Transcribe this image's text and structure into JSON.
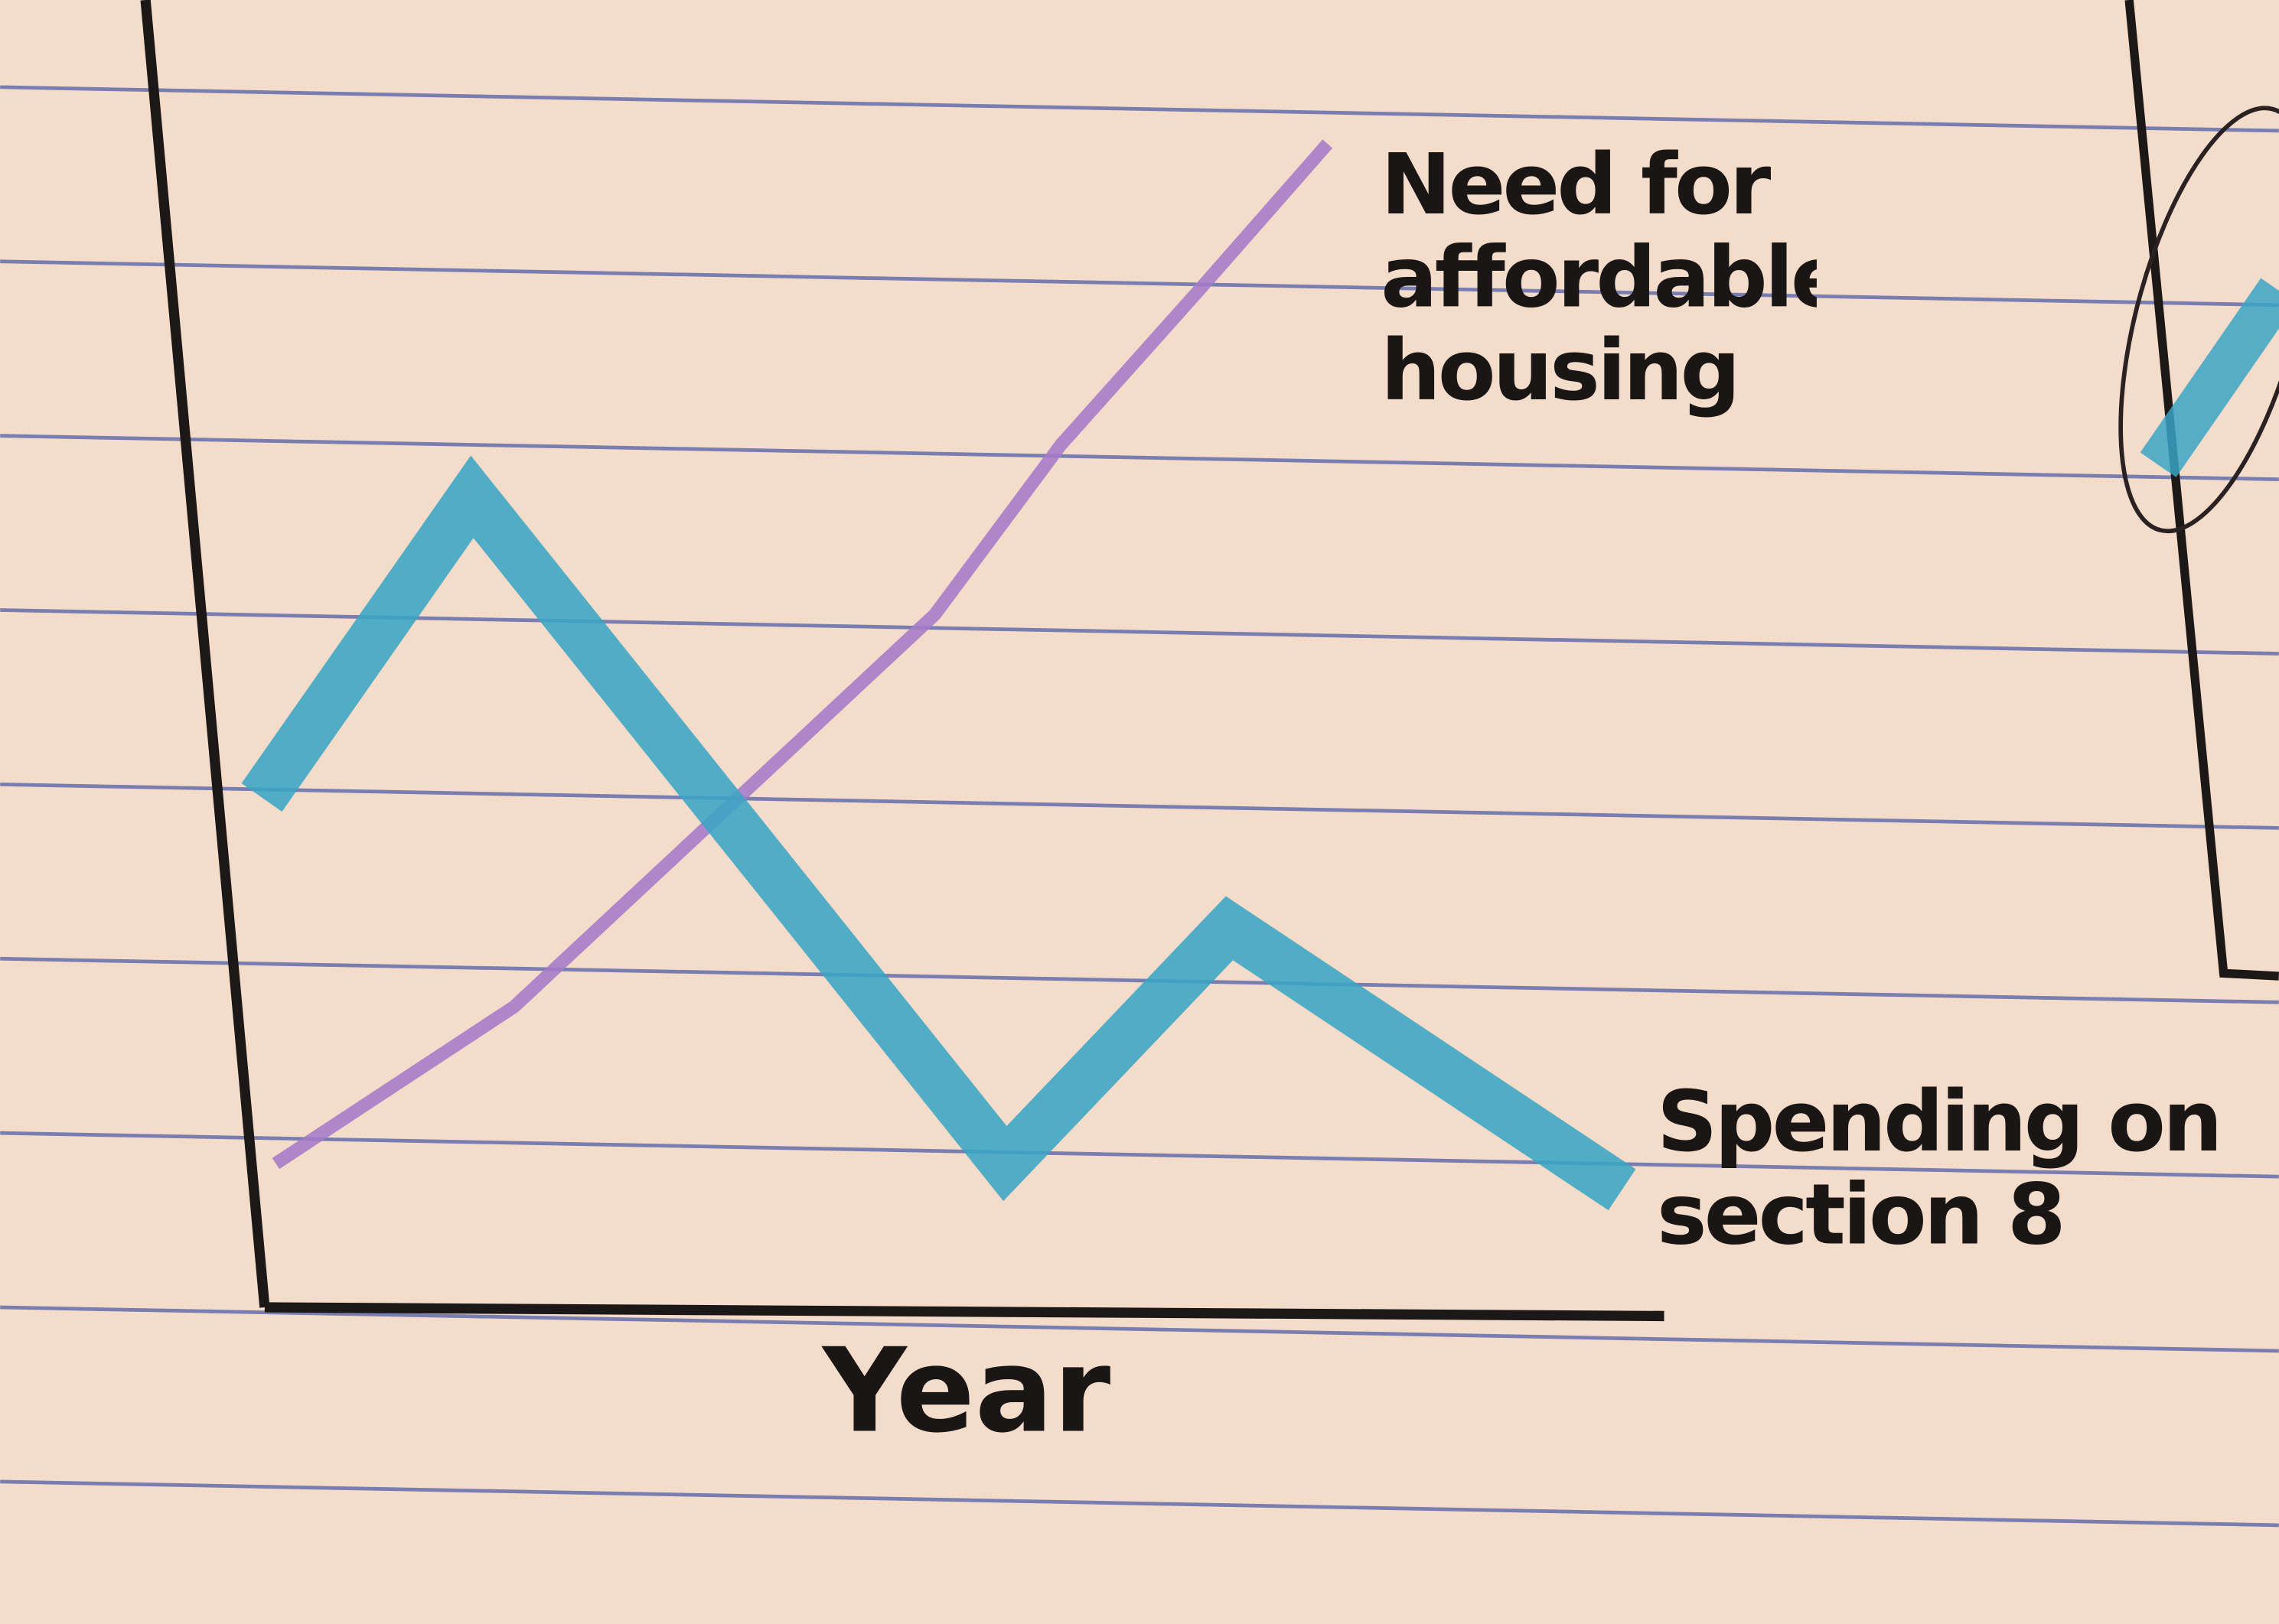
{
  "chart_data": {
    "type": "line",
    "x_label": "Year",
    "xlim": [
      0,
      100
    ],
    "ylim": [
      0,
      100
    ],
    "series": [
      {
        "name": "Need for affordable housing",
        "color": "#a47ac8",
        "x": [
          1,
          18,
          34,
          48,
          57,
          67,
          76
        ],
        "values": [
          11,
          23,
          39,
          53,
          66,
          78,
          89
        ]
      },
      {
        "name": "Spending on section 8",
        "color": "#3aa5c5",
        "x": [
          0,
          15,
          53,
          69,
          97
        ],
        "values": [
          39,
          62,
          11,
          29,
          9
        ]
      }
    ]
  }
}
